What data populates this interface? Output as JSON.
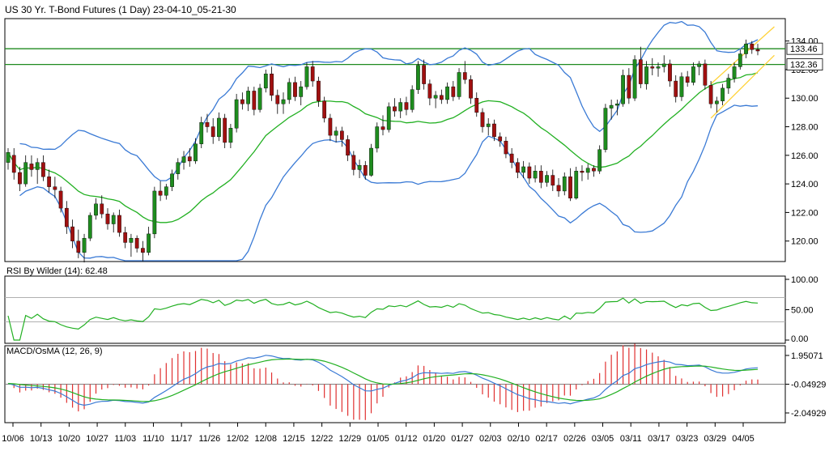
{
  "chart_data": {
    "title": "US 30 Yr. T-Bond Futures (1 Day) 23-04-10_05-21-30",
    "x_dates": [
      "10/06",
      "10/13",
      "10/20",
      "10/27",
      "11/03",
      "11/10",
      "11/17",
      "11/26",
      "12/02",
      "12/08",
      "12/15",
      "12/22",
      "12/29",
      "01/05",
      "01/12",
      "01/20",
      "01/27",
      "02/03",
      "02/10",
      "02/17",
      "02/26",
      "03/05",
      "03/11",
      "03/17",
      "03/23",
      "03/29",
      "04/05"
    ],
    "colors": {
      "bull": "#1e8c1e",
      "bear": "#a01010",
      "band": "#3a7ad5",
      "ma": "#22b022",
      "level": "#1f8a1f",
      "channel": "#ffd23a",
      "rsi": "#22b022",
      "macd": "#3a7ad5",
      "signal": "#22b022",
      "osma": "#e03030"
    },
    "price_panel": {
      "type": "candlestick",
      "ylim": [
        118,
        135
      ],
      "yticks": [
        "118.00",
        "120.00",
        "122.00",
        "124.00",
        "126.00",
        "128.00",
        "130.00",
        "132.00",
        "134.00"
      ],
      "levels": [
        {
          "name": "resistance-upper",
          "value": 133.46,
          "label": "133.46"
        },
        {
          "name": "resistance-lower",
          "value": 132.36,
          "label": "132.36"
        }
      ],
      "candles": [
        {
          "o": 125.5,
          "h": 126.5,
          "l": 125.0,
          "c": 126.2
        },
        {
          "o": 126.0,
          "h": 126.5,
          "l": 124.3,
          "c": 124.8
        },
        {
          "o": 124.8,
          "h": 125.2,
          "l": 123.5,
          "c": 124.0
        },
        {
          "o": 124.0,
          "h": 126.0,
          "l": 123.8,
          "c": 125.5
        },
        {
          "o": 125.4,
          "h": 126.0,
          "l": 124.5,
          "c": 125.0
        },
        {
          "o": 125.0,
          "h": 125.8,
          "l": 124.0,
          "c": 125.5
        },
        {
          "o": 125.5,
          "h": 126.0,
          "l": 124.2,
          "c": 124.5
        },
        {
          "o": 124.5,
          "h": 125.0,
          "l": 123.4,
          "c": 123.8
        },
        {
          "o": 123.8,
          "h": 124.5,
          "l": 123.0,
          "c": 123.6
        },
        {
          "o": 123.5,
          "h": 123.8,
          "l": 122.0,
          "c": 122.3
        },
        {
          "o": 122.3,
          "h": 122.8,
          "l": 120.5,
          "c": 121.0
        },
        {
          "o": 121.0,
          "h": 121.5,
          "l": 119.5,
          "c": 120.0
        },
        {
          "o": 120.0,
          "h": 120.8,
          "l": 118.8,
          "c": 119.2
        },
        {
          "o": 119.2,
          "h": 120.5,
          "l": 118.5,
          "c": 120.2
        },
        {
          "o": 120.2,
          "h": 122.0,
          "l": 120.0,
          "c": 121.8
        },
        {
          "o": 121.8,
          "h": 123.0,
          "l": 121.5,
          "c": 122.6
        },
        {
          "o": 122.6,
          "h": 123.2,
          "l": 121.6,
          "c": 121.9
        },
        {
          "o": 121.9,
          "h": 122.3,
          "l": 120.8,
          "c": 121.2
        },
        {
          "o": 121.2,
          "h": 122.0,
          "l": 120.6,
          "c": 121.8
        },
        {
          "o": 121.8,
          "h": 122.2,
          "l": 120.3,
          "c": 120.6
        },
        {
          "o": 120.6,
          "h": 121.0,
          "l": 119.5,
          "c": 119.9
        },
        {
          "o": 119.9,
          "h": 120.5,
          "l": 118.9,
          "c": 120.2
        },
        {
          "o": 120.2,
          "h": 120.4,
          "l": 119.2,
          "c": 119.5
        },
        {
          "o": 119.5,
          "h": 120.0,
          "l": 118.6,
          "c": 119.2
        },
        {
          "o": 119.2,
          "h": 121.0,
          "l": 119.0,
          "c": 120.5
        },
        {
          "o": 120.5,
          "h": 123.8,
          "l": 120.2,
          "c": 123.5
        },
        {
          "o": 123.5,
          "h": 124.2,
          "l": 122.8,
          "c": 123.2
        },
        {
          "o": 123.2,
          "h": 124.0,
          "l": 122.9,
          "c": 123.8
        },
        {
          "o": 123.8,
          "h": 125.0,
          "l": 123.5,
          "c": 124.7
        },
        {
          "o": 124.7,
          "h": 125.8,
          "l": 124.3,
          "c": 125.5
        },
        {
          "o": 125.5,
          "h": 126.3,
          "l": 125.0,
          "c": 125.9
        },
        {
          "o": 125.9,
          "h": 126.5,
          "l": 125.2,
          "c": 125.6
        },
        {
          "o": 125.6,
          "h": 127.2,
          "l": 125.4,
          "c": 126.8
        },
        {
          "o": 126.8,
          "h": 128.7,
          "l": 126.5,
          "c": 128.3
        },
        {
          "o": 128.3,
          "h": 128.9,
          "l": 127.6,
          "c": 128.0
        },
        {
          "o": 128.0,
          "h": 128.6,
          "l": 126.8,
          "c": 127.3
        },
        {
          "o": 127.3,
          "h": 129.0,
          "l": 127.0,
          "c": 128.6
        },
        {
          "o": 128.6,
          "h": 128.9,
          "l": 126.5,
          "c": 126.9
        },
        {
          "o": 126.9,
          "h": 128.2,
          "l": 126.5,
          "c": 127.9
        },
        {
          "o": 127.9,
          "h": 130.3,
          "l": 127.6,
          "c": 129.9
        },
        {
          "o": 129.9,
          "h": 130.4,
          "l": 129.2,
          "c": 129.6
        },
        {
          "o": 129.6,
          "h": 130.8,
          "l": 129.1,
          "c": 130.5
        },
        {
          "o": 130.5,
          "h": 130.8,
          "l": 128.8,
          "c": 129.2
        },
        {
          "o": 129.2,
          "h": 131.0,
          "l": 129.0,
          "c": 130.7
        },
        {
          "o": 130.7,
          "h": 132.0,
          "l": 130.4,
          "c": 131.7
        },
        {
          "o": 131.7,
          "h": 132.2,
          "l": 129.8,
          "c": 130.2
        },
        {
          "o": 130.2,
          "h": 130.6,
          "l": 128.9,
          "c": 129.6
        },
        {
          "o": 129.6,
          "h": 130.4,
          "l": 128.9,
          "c": 129.9
        },
        {
          "o": 129.9,
          "h": 131.4,
          "l": 129.6,
          "c": 131.1
        },
        {
          "o": 131.1,
          "h": 131.5,
          "l": 129.8,
          "c": 130.1
        },
        {
          "o": 130.1,
          "h": 131.2,
          "l": 129.5,
          "c": 130.8
        },
        {
          "o": 130.8,
          "h": 132.5,
          "l": 130.6,
          "c": 132.2
        },
        {
          "o": 132.2,
          "h": 132.6,
          "l": 130.8,
          "c": 131.2
        },
        {
          "o": 131.2,
          "h": 131.5,
          "l": 129.4,
          "c": 129.8
        },
        {
          "o": 129.8,
          "h": 130.1,
          "l": 128.3,
          "c": 128.6
        },
        {
          "o": 128.6,
          "h": 128.9,
          "l": 127.0,
          "c": 127.4
        },
        {
          "o": 127.4,
          "h": 128.0,
          "l": 126.9,
          "c": 127.7
        },
        {
          "o": 127.7,
          "h": 128.0,
          "l": 126.6,
          "c": 127.1
        },
        {
          "o": 127.1,
          "h": 127.4,
          "l": 125.6,
          "c": 126.0
        },
        {
          "o": 126.0,
          "h": 126.3,
          "l": 124.6,
          "c": 125.0
        },
        {
          "o": 125.0,
          "h": 125.7,
          "l": 124.4,
          "c": 125.3
        },
        {
          "o": 125.3,
          "h": 125.6,
          "l": 124.3,
          "c": 124.6
        },
        {
          "o": 124.6,
          "h": 126.8,
          "l": 124.5,
          "c": 126.5
        },
        {
          "o": 126.5,
          "h": 128.3,
          "l": 126.2,
          "c": 128.0
        },
        {
          "o": 128.0,
          "h": 128.8,
          "l": 127.4,
          "c": 127.8
        },
        {
          "o": 127.8,
          "h": 129.7,
          "l": 127.6,
          "c": 129.4
        },
        {
          "o": 129.4,
          "h": 130.0,
          "l": 128.7,
          "c": 129.1
        },
        {
          "o": 129.1,
          "h": 130.0,
          "l": 128.6,
          "c": 129.7
        },
        {
          "o": 129.7,
          "h": 130.1,
          "l": 128.8,
          "c": 129.2
        },
        {
          "o": 129.2,
          "h": 130.9,
          "l": 129.0,
          "c": 130.6
        },
        {
          "o": 130.6,
          "h": 132.6,
          "l": 130.3,
          "c": 132.3
        },
        {
          "o": 132.3,
          "h": 132.7,
          "l": 130.6,
          "c": 131.0
        },
        {
          "o": 131.0,
          "h": 131.3,
          "l": 129.5,
          "c": 130.0
        },
        {
          "o": 130.0,
          "h": 130.5,
          "l": 129.3,
          "c": 130.2
        },
        {
          "o": 130.2,
          "h": 130.6,
          "l": 129.6,
          "c": 129.9
        },
        {
          "o": 129.9,
          "h": 131.1,
          "l": 129.6,
          "c": 130.8
        },
        {
          "o": 130.8,
          "h": 131.2,
          "l": 129.8,
          "c": 130.1
        },
        {
          "o": 130.1,
          "h": 132.1,
          "l": 129.9,
          "c": 131.8
        },
        {
          "o": 131.8,
          "h": 132.6,
          "l": 131.0,
          "c": 131.3
        },
        {
          "o": 131.3,
          "h": 131.6,
          "l": 129.6,
          "c": 130.0
        },
        {
          "o": 130.0,
          "h": 130.4,
          "l": 128.7,
          "c": 129.0
        },
        {
          "o": 129.0,
          "h": 129.3,
          "l": 127.6,
          "c": 128.0
        },
        {
          "o": 128.0,
          "h": 128.6,
          "l": 127.4,
          "c": 128.2
        },
        {
          "o": 128.2,
          "h": 128.5,
          "l": 127.0,
          "c": 127.3
        },
        {
          "o": 127.3,
          "h": 127.6,
          "l": 126.6,
          "c": 127.0
        },
        {
          "o": 127.0,
          "h": 127.3,
          "l": 125.8,
          "c": 126.1
        },
        {
          "o": 126.1,
          "h": 126.5,
          "l": 125.1,
          "c": 125.5
        },
        {
          "o": 125.5,
          "h": 125.8,
          "l": 124.4,
          "c": 124.8
        },
        {
          "o": 124.8,
          "h": 125.6,
          "l": 124.4,
          "c": 125.2
        },
        {
          "o": 125.2,
          "h": 125.5,
          "l": 124.0,
          "c": 124.4
        },
        {
          "o": 124.4,
          "h": 125.3,
          "l": 124.1,
          "c": 124.9
        },
        {
          "o": 124.9,
          "h": 125.3,
          "l": 123.7,
          "c": 124.1
        },
        {
          "o": 124.1,
          "h": 124.9,
          "l": 123.8,
          "c": 124.6
        },
        {
          "o": 124.6,
          "h": 125.0,
          "l": 123.5,
          "c": 123.9
        },
        {
          "o": 123.9,
          "h": 124.4,
          "l": 123.1,
          "c": 123.5
        },
        {
          "o": 123.5,
          "h": 124.8,
          "l": 123.2,
          "c": 124.5
        },
        {
          "o": 124.5,
          "h": 125.1,
          "l": 122.8,
          "c": 123.0
        },
        {
          "o": 123.0,
          "h": 125.2,
          "l": 122.9,
          "c": 124.9
        },
        {
          "o": 124.9,
          "h": 125.3,
          "l": 124.2,
          "c": 124.8
        },
        {
          "o": 124.8,
          "h": 125.4,
          "l": 124.3,
          "c": 125.1
        },
        {
          "o": 125.1,
          "h": 125.3,
          "l": 124.5,
          "c": 124.9
        },
        {
          "o": 124.9,
          "h": 126.7,
          "l": 124.7,
          "c": 126.4
        },
        {
          "o": 126.4,
          "h": 129.6,
          "l": 126.2,
          "c": 129.3
        },
        {
          "o": 129.3,
          "h": 129.9,
          "l": 128.5,
          "c": 129.5
        },
        {
          "o": 129.5,
          "h": 129.9,
          "l": 128.8,
          "c": 129.6
        },
        {
          "o": 129.6,
          "h": 132.0,
          "l": 129.4,
          "c": 131.6
        },
        {
          "o": 131.6,
          "h": 132.1,
          "l": 129.6,
          "c": 130.0
        },
        {
          "o": 130.0,
          "h": 133.0,
          "l": 129.8,
          "c": 132.7
        },
        {
          "o": 132.7,
          "h": 133.6,
          "l": 130.7,
          "c": 131.0
        },
        {
          "o": 131.0,
          "h": 132.6,
          "l": 130.6,
          "c": 132.2
        },
        {
          "o": 132.2,
          "h": 132.8,
          "l": 131.6,
          "c": 132.1
        },
        {
          "o": 132.1,
          "h": 132.5,
          "l": 131.5,
          "c": 132.2
        },
        {
          "o": 132.2,
          "h": 133.0,
          "l": 131.8,
          "c": 132.4
        },
        {
          "o": 132.4,
          "h": 132.7,
          "l": 130.8,
          "c": 131.2
        },
        {
          "o": 131.2,
          "h": 131.6,
          "l": 129.7,
          "c": 130.1
        },
        {
          "o": 130.1,
          "h": 131.8,
          "l": 129.8,
          "c": 131.5
        },
        {
          "o": 131.5,
          "h": 131.9,
          "l": 130.8,
          "c": 131.1
        },
        {
          "o": 131.1,
          "h": 132.5,
          "l": 130.9,
          "c": 132.2
        },
        {
          "o": 132.2,
          "h": 132.6,
          "l": 131.6,
          "c": 132.4
        },
        {
          "o": 132.4,
          "h": 132.7,
          "l": 130.6,
          "c": 130.9
        },
        {
          "o": 130.9,
          "h": 131.2,
          "l": 129.3,
          "c": 129.6
        },
        {
          "o": 129.6,
          "h": 130.1,
          "l": 129.0,
          "c": 129.8
        },
        {
          "o": 129.8,
          "h": 131.0,
          "l": 129.5,
          "c": 130.7
        },
        {
          "o": 130.7,
          "h": 131.7,
          "l": 130.3,
          "c": 131.4
        },
        {
          "o": 131.4,
          "h": 132.5,
          "l": 131.1,
          "c": 132.2
        },
        {
          "o": 132.2,
          "h": 133.4,
          "l": 132.0,
          "c": 133.1
        },
        {
          "o": 133.1,
          "h": 134.1,
          "l": 132.8,
          "c": 133.8
        },
        {
          "o": 133.8,
          "h": 134.0,
          "l": 133.1,
          "c": 133.4
        },
        {
          "o": 133.4,
          "h": 133.8,
          "l": 133.0,
          "c": 133.3
        }
      ]
    },
    "rsi_panel": {
      "label": "RSI By Wilder (14): 62.48",
      "ylim": [
        0,
        100
      ],
      "yticks": [
        "0.00",
        "50.00",
        "100.00"
      ],
      "levels": [
        30,
        70
      ]
    },
    "macd_panel": {
      "label": "MACD/OsMA (12, 26, 9)",
      "yticks": [
        "1.95071",
        "-0.04929",
        "-2.04929"
      ],
      "ylim": [
        -2.5,
        2.4
      ]
    }
  }
}
